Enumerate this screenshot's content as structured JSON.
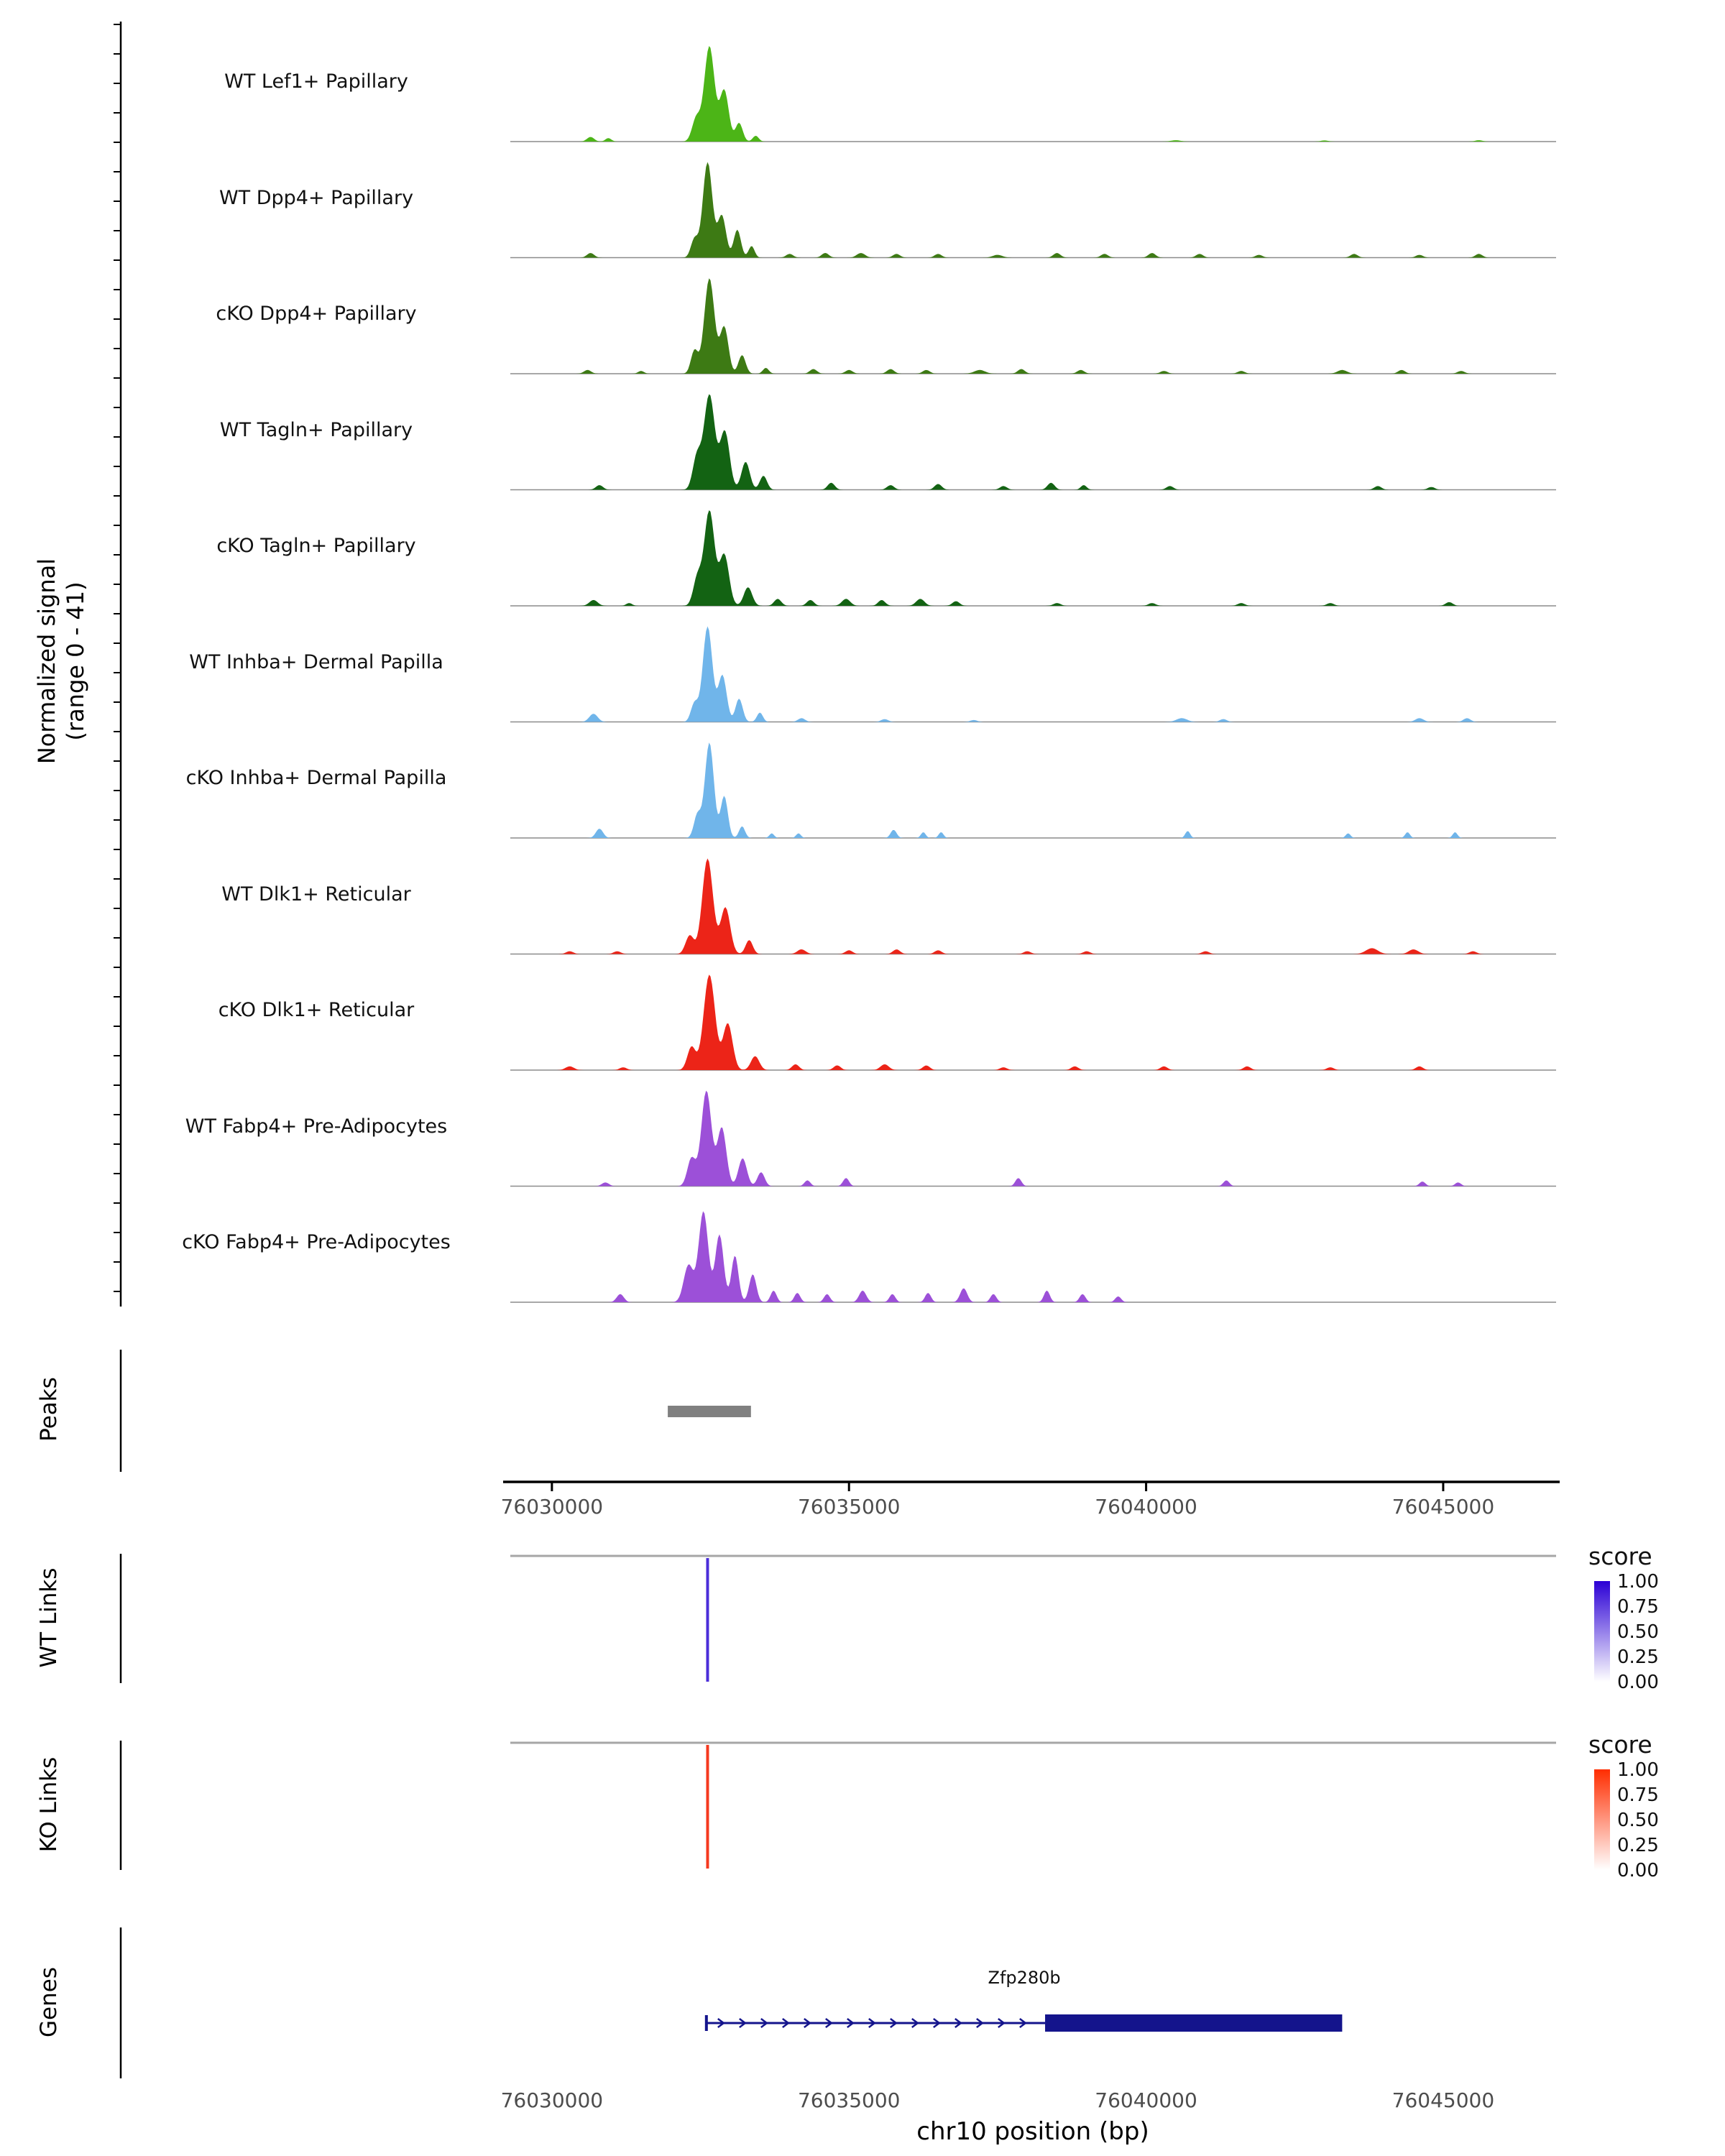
{
  "figure": {
    "y_axis_label": "Normalized signal\n(range 0 - 41)",
    "sections": {
      "peaks_label": "Peaks",
      "wt_links_label": "WT Links",
      "ko_links_label": "KO Links",
      "genes_label": "Genes"
    },
    "x_axis": {
      "label": "chr10 position (bp)",
      "ticks": [
        "76030000",
        "76035000",
        "76040000",
        "76045000"
      ]
    },
    "legend": {
      "title": "score",
      "ticks": [
        "1.00",
        "0.75",
        "0.50",
        "0.25",
        "0.00"
      ],
      "wt_color": "#2B00D5",
      "ko_color": "#FF2D00"
    }
  },
  "chart_data": {
    "type": "area",
    "title": "",
    "xlabel": "chr10 position (bp)",
    "ylabel": "Normalized signal (range 0 - 41)",
    "x_domain": [
      76029300,
      76046900
    ],
    "x_ticks": [
      76030000,
      76035000,
      76040000,
      76045000
    ],
    "y_range": [
      0,
      41
    ],
    "tracks": [
      {
        "name": "WT Lef1+ Papillary",
        "color": "#4CB517",
        "bumps": [
          [
            76030650,
            2,
            60
          ],
          [
            76030950,
            1.5,
            50
          ],
          [
            76032430,
            10,
            70
          ],
          [
            76032650,
            41,
            85
          ],
          [
            76032900,
            22,
            75
          ],
          [
            76033150,
            8,
            60
          ],
          [
            76033430,
            2.5,
            50
          ],
          [
            76040500,
            0.6,
            80
          ],
          [
            76043000,
            0.5,
            60
          ],
          [
            76045600,
            0.6,
            60
          ]
        ]
      },
      {
        "name": "WT Dpp4+ Papillary",
        "color": "#3D7A14",
        "bumps": [
          [
            76030650,
            2,
            60
          ],
          [
            76032400,
            8,
            60
          ],
          [
            76032620,
            41,
            80
          ],
          [
            76032860,
            18,
            70
          ],
          [
            76033120,
            12,
            60
          ],
          [
            76033360,
            5,
            50
          ],
          [
            76034000,
            1.6,
            60
          ],
          [
            76034600,
            2,
            60
          ],
          [
            76035200,
            2,
            70
          ],
          [
            76035800,
            1.6,
            60
          ],
          [
            76036500,
            1.6,
            60
          ],
          [
            76037500,
            1.2,
            80
          ],
          [
            76038500,
            2,
            60
          ],
          [
            76039300,
            1.6,
            60
          ],
          [
            76040100,
            2,
            60
          ],
          [
            76040900,
            1.6,
            60
          ],
          [
            76041900,
            1.2,
            60
          ],
          [
            76043500,
            1.6,
            60
          ],
          [
            76044600,
            1.2,
            60
          ],
          [
            76045600,
            1.6,
            60
          ]
        ]
      },
      {
        "name": "cKO Dpp4+ Papillary",
        "color": "#3D7A14",
        "bumps": [
          [
            76030600,
            1.6,
            60
          ],
          [
            76031500,
            1.2,
            50
          ],
          [
            76032400,
            10,
            60
          ],
          [
            76032650,
            41,
            85
          ],
          [
            76032900,
            20,
            70
          ],
          [
            76033200,
            8,
            60
          ],
          [
            76033600,
            2.5,
            50
          ],
          [
            76034400,
            2,
            60
          ],
          [
            76035000,
            1.6,
            60
          ],
          [
            76035700,
            2,
            60
          ],
          [
            76036300,
            1.6,
            60
          ],
          [
            76037200,
            1.6,
            90
          ],
          [
            76037900,
            2,
            60
          ],
          [
            76038900,
            1.6,
            60
          ],
          [
            76040300,
            1.2,
            60
          ],
          [
            76041600,
            1.2,
            60
          ],
          [
            76043300,
            1.6,
            80
          ],
          [
            76044300,
            1.6,
            60
          ],
          [
            76045300,
            1.2,
            60
          ]
        ]
      },
      {
        "name": "WT Tagln+ Papillary",
        "color": "#136313",
        "bumps": [
          [
            76030800,
            2,
            60
          ],
          [
            76032440,
            14,
            70
          ],
          [
            76032650,
            41,
            90
          ],
          [
            76032910,
            25,
            80
          ],
          [
            76033260,
            12,
            70
          ],
          [
            76033560,
            6,
            60
          ],
          [
            76034700,
            3,
            60
          ],
          [
            76035700,
            2,
            60
          ],
          [
            76036500,
            2.5,
            60
          ],
          [
            76037600,
            1.6,
            60
          ],
          [
            76038400,
            3,
            60
          ],
          [
            76038950,
            2,
            50
          ],
          [
            76040400,
            1.6,
            60
          ],
          [
            76043900,
            1.6,
            60
          ],
          [
            76044800,
            1.2,
            60
          ]
        ]
      },
      {
        "name": "cKO Tagln+ Papillary",
        "color": "#136313",
        "bumps": [
          [
            76030700,
            2.5,
            70
          ],
          [
            76031300,
            1.2,
            50
          ],
          [
            76032450,
            12,
            70
          ],
          [
            76032650,
            41,
            85
          ],
          [
            76032900,
            22,
            80
          ],
          [
            76033300,
            8,
            70
          ],
          [
            76033800,
            3,
            60
          ],
          [
            76034350,
            2.5,
            60
          ],
          [
            76034950,
            3,
            70
          ],
          [
            76035550,
            2.5,
            60
          ],
          [
            76036200,
            3,
            70
          ],
          [
            76036800,
            2,
            60
          ],
          [
            76038500,
            1.2,
            60
          ],
          [
            76040100,
            1.2,
            60
          ],
          [
            76041600,
            1.2,
            60
          ],
          [
            76043100,
            1.2,
            60
          ],
          [
            76045100,
            1.6,
            60
          ]
        ]
      },
      {
        "name": "WT Inhba+ Dermal Papilla",
        "color": "#70B5EA",
        "bumps": [
          [
            76030700,
            3.5,
            70
          ],
          [
            76032400,
            8,
            60
          ],
          [
            76032620,
            41,
            80
          ],
          [
            76032870,
            20,
            70
          ],
          [
            76033150,
            10,
            60
          ],
          [
            76033500,
            4,
            50
          ],
          [
            76034200,
            1.6,
            60
          ],
          [
            76035600,
            1.2,
            60
          ],
          [
            76037100,
            0.8,
            60
          ],
          [
            76040600,
            1.6,
            90
          ],
          [
            76041300,
            1.2,
            60
          ],
          [
            76044600,
            1.6,
            70
          ],
          [
            76045400,
            1.6,
            60
          ]
        ]
      },
      {
        "name": "cKO Inhba+ Dermal Papilla",
        "color": "#70B5EA",
        "bumps": [
          [
            76030800,
            4,
            60
          ],
          [
            76032450,
            10,
            60
          ],
          [
            76032650,
            41,
            75
          ],
          [
            76032900,
            18,
            60
          ],
          [
            76033200,
            5,
            50
          ],
          [
            76033700,
            2,
            40
          ],
          [
            76034150,
            2,
            40
          ],
          [
            76035750,
            3.5,
            50
          ],
          [
            76036250,
            2.5,
            40
          ],
          [
            76036550,
            2.5,
            40
          ],
          [
            76040700,
            3,
            40
          ],
          [
            76043400,
            2,
            40
          ],
          [
            76044400,
            2.5,
            40
          ],
          [
            76045200,
            2.5,
            40
          ]
        ]
      },
      {
        "name": "WT Dlk1+ Reticular",
        "color": "#EC2418",
        "bumps": [
          [
            76030300,
            1.2,
            60
          ],
          [
            76031100,
            1.2,
            60
          ],
          [
            76032320,
            8,
            70
          ],
          [
            76032620,
            41,
            90
          ],
          [
            76032920,
            20,
            80
          ],
          [
            76033320,
            6,
            60
          ],
          [
            76034200,
            2,
            70
          ],
          [
            76035000,
            1.6,
            60
          ],
          [
            76035800,
            2,
            60
          ],
          [
            76036500,
            1.6,
            60
          ],
          [
            76038000,
            1.2,
            60
          ],
          [
            76039000,
            1.2,
            60
          ],
          [
            76041000,
            1.2,
            60
          ],
          [
            76043800,
            2.5,
            100
          ],
          [
            76044500,
            2,
            80
          ],
          [
            76045500,
            1.2,
            60
          ]
        ]
      },
      {
        "name": "cKO Dlk1+ Reticular",
        "color": "#EC2418",
        "bumps": [
          [
            76030300,
            1.6,
            70
          ],
          [
            76031200,
            1.2,
            60
          ],
          [
            76032350,
            10,
            70
          ],
          [
            76032650,
            41,
            95
          ],
          [
            76032960,
            20,
            80
          ],
          [
            76033420,
            6,
            70
          ],
          [
            76034100,
            2.5,
            60
          ],
          [
            76034800,
            2,
            60
          ],
          [
            76035600,
            2.5,
            70
          ],
          [
            76036300,
            2,
            60
          ],
          [
            76037600,
            1.2,
            60
          ],
          [
            76038800,
            1.6,
            60
          ],
          [
            76040300,
            1.6,
            60
          ],
          [
            76041700,
            1.6,
            60
          ],
          [
            76043100,
            1.2,
            60
          ],
          [
            76044600,
            1.6,
            60
          ]
        ]
      },
      {
        "name": "WT Fabp4+ Pre-Adipocytes",
        "color": "#9C50D8",
        "bumps": [
          [
            76030900,
            1.6,
            60
          ],
          [
            76032350,
            12,
            70
          ],
          [
            76032600,
            41,
            85
          ],
          [
            76032860,
            25,
            75
          ],
          [
            76033210,
            12,
            70
          ],
          [
            76033520,
            6,
            60
          ],
          [
            76034300,
            2.5,
            50
          ],
          [
            76034950,
            3.5,
            50
          ],
          [
            76037850,
            3.5,
            50
          ],
          [
            76041350,
            2.5,
            50
          ],
          [
            76044650,
            2,
            50
          ],
          [
            76045250,
            1.6,
            50
          ]
        ]
      },
      {
        "name": "cKO Fabp4+ Pre-Adipocytes",
        "color": "#9C50D8",
        "bumps": [
          [
            76031150,
            3.5,
            60
          ],
          [
            76032300,
            16,
            80
          ],
          [
            76032550,
            39,
            80
          ],
          [
            76032820,
            29,
            70
          ],
          [
            76033080,
            20,
            60
          ],
          [
            76033380,
            12,
            60
          ],
          [
            76033730,
            5,
            50
          ],
          [
            76034130,
            4,
            50
          ],
          [
            76034630,
            3.5,
            50
          ],
          [
            76035230,
            5,
            60
          ],
          [
            76035730,
            3.5,
            50
          ],
          [
            76036330,
            4,
            50
          ],
          [
            76036930,
            6,
            60
          ],
          [
            76037430,
            3.5,
            50
          ],
          [
            76038330,
            5,
            50
          ],
          [
            76038930,
            3.5,
            50
          ],
          [
            76039530,
            2.5,
            50
          ]
        ]
      }
    ],
    "peaks_regions": [
      [
        76031950,
        76033350
      ]
    ],
    "peaks_color": "#808080",
    "links": {
      "wt": {
        "position": 76032620,
        "color": "#4B2ED9"
      },
      "ko": {
        "position": 76032620,
        "color": "#F5391F"
      }
    },
    "gene": {
      "name": "Zfp280b",
      "strand": "+",
      "start": 76032600,
      "thin_end": 76038300,
      "end": 76043300,
      "color": "#14148C"
    }
  }
}
